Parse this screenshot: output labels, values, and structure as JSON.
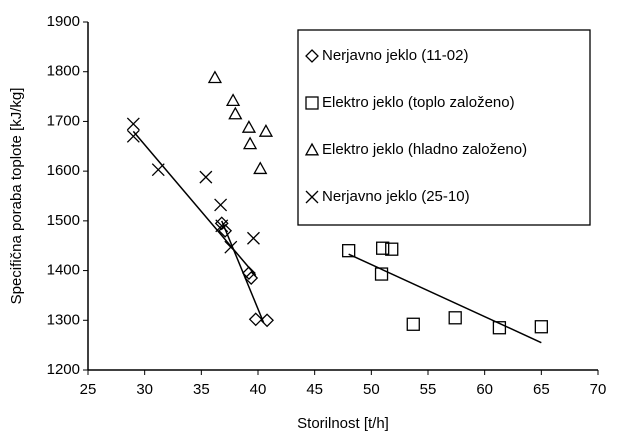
{
  "chart_data": {
    "type": "scatter",
    "x_label": "Storilnost [t/h]",
    "y_label": "Specifična poraba toplote [kJ/kg]",
    "xlim": [
      25,
      70
    ],
    "xticks": [
      25,
      30,
      35,
      40,
      45,
      50,
      55,
      60,
      65,
      70
    ],
    "ylim": [
      1200,
      1900
    ],
    "yticks": [
      1200,
      1300,
      1400,
      1500,
      1600,
      1700,
      1800,
      1900
    ],
    "grid": false,
    "legend": "upper right",
    "series": [
      {
        "name": "Nerjavno jeklo (11-02)",
        "marker": "diamond",
        "color": "#000000",
        "x": [
          36.8,
          37.1,
          39.2,
          39.4,
          39.8,
          40.8
        ],
        "values": [
          1495,
          1480,
          1395,
          1385,
          1302,
          1300
        ],
        "trendline": {
          "x": [
            36.8,
            40.5
          ],
          "values": [
            1500,
            1295
          ]
        }
      },
      {
        "name": "Elektro jeklo (toplo založeno)",
        "marker": "square",
        "color": "#000000",
        "x": [
          48,
          51,
          51.8,
          50.9,
          53.7,
          57.4,
          61.3,
          65
        ],
        "values": [
          1440,
          1445,
          1443,
          1393,
          1292,
          1305,
          1285,
          1287
        ],
        "trendline": {
          "x": [
            48,
            65
          ],
          "values": [
            1433,
            1255
          ]
        }
      },
      {
        "name": "Elektro jeklo (hladno založeno)",
        "marker": "triangle",
        "color": "#000000",
        "x": [
          36.2,
          37.8,
          38,
          39.2,
          39.3,
          40.7,
          40.2
        ],
        "values": [
          1788,
          1742,
          1715,
          1688,
          1655,
          1680,
          1605
        ]
      },
      {
        "name": "Nerjavno jeklo (25-10)",
        "marker": "x",
        "color": "#000000",
        "x": [
          29,
          29,
          31.2,
          35.4,
          36.7,
          36.8,
          37.6,
          39.6
        ],
        "values": [
          1695,
          1670,
          1603,
          1588,
          1532,
          1490,
          1447,
          1465
        ],
        "trendline": {
          "x": [
            29,
            39.8
          ],
          "values": [
            1680,
            1390
          ]
        }
      }
    ]
  }
}
